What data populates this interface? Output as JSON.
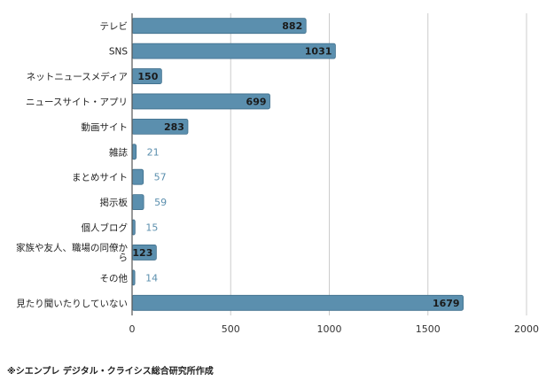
{
  "chart_data": {
    "type": "bar",
    "orientation": "horizontal",
    "categories": [
      "テレビ",
      "SNS",
      "ネットニュースメディア",
      "ニュースサイト・アプリ",
      "動画サイト",
      "雑誌",
      "まとめサイト",
      "掲示板",
      "個人ブログ",
      "家族や友人、職場の同僚から",
      "その他",
      "見たり聞いたりしていない"
    ],
    "values": [
      882,
      1031,
      150,
      699,
      283,
      21,
      57,
      59,
      15,
      123,
      14,
      1679
    ],
    "xlim": [
      0,
      2000
    ],
    "xticks": [
      0,
      500,
      1000,
      1500,
      2000
    ],
    "grid": true,
    "title": "",
    "xlabel": "",
    "ylabel": ""
  },
  "colors": {
    "bar": "#5b8fae",
    "bar_edge": "#3f6f8c",
    "value_inside": "#1a1a1a",
    "value_outside": "#5b8fae",
    "grid": "#cccccc",
    "axis": "#555555"
  },
  "footnote": "※シエンプレ デジタル・クライシス総合研究所作成"
}
